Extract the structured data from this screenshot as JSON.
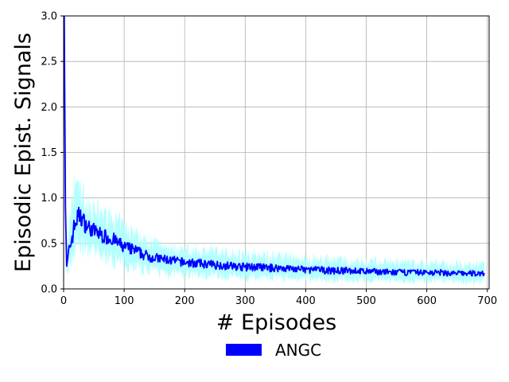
{
  "chart_data": {
    "type": "line",
    "title": "",
    "xlabel": "# Episodes",
    "ylabel": "Episodic Epist. Signals",
    "xlim": [
      0,
      703
    ],
    "ylim": [
      0,
      3.0
    ],
    "xticks": [
      0,
      100,
      200,
      300,
      400,
      500,
      600,
      700
    ],
    "yticks": [
      0.0,
      0.5,
      1.0,
      1.5,
      2.0,
      2.5,
      3.0
    ],
    "xtick_labels": [
      "0",
      "100",
      "200",
      "300",
      "400",
      "500",
      "600",
      "700"
    ],
    "ytick_labels": [
      "0.0",
      "0.5",
      "1.0",
      "1.5",
      "2.0",
      "2.5",
      "3.0"
    ],
    "grid": true,
    "legend": {
      "placement": "below-plot",
      "entries": [
        "ANGC"
      ]
    },
    "colors": {
      "mean_line": "#0000ff",
      "band": "#aaffff",
      "grid": "#b0b0b0"
    },
    "series": [
      {
        "name": "ANGC",
        "x": [
          1,
          3,
          5,
          7,
          10,
          15,
          20,
          25,
          30,
          35,
          40,
          50,
          60,
          70,
          80,
          90,
          100,
          110,
          120,
          130,
          140,
          150,
          160,
          170,
          180,
          190,
          200,
          220,
          240,
          260,
          280,
          300,
          320,
          340,
          360,
          380,
          400,
          420,
          440,
          460,
          480,
          500,
          520,
          540,
          560,
          580,
          600,
          620,
          640,
          660,
          680,
          695
        ],
        "values": [
          3.0,
          0.9,
          0.25,
          0.35,
          0.45,
          0.6,
          0.75,
          0.8,
          0.78,
          0.72,
          0.68,
          0.64,
          0.6,
          0.57,
          0.55,
          0.5,
          0.46,
          0.44,
          0.42,
          0.38,
          0.36,
          0.34,
          0.33,
          0.32,
          0.31,
          0.3,
          0.29,
          0.28,
          0.27,
          0.26,
          0.25,
          0.24,
          0.24,
          0.23,
          0.23,
          0.22,
          0.21,
          0.21,
          0.2,
          0.2,
          0.2,
          0.19,
          0.19,
          0.18,
          0.18,
          0.18,
          0.18,
          0.18,
          0.17,
          0.17,
          0.17,
          0.17
        ],
        "band_lower": [
          2.5,
          0.6,
          0.15,
          0.2,
          0.28,
          0.38,
          0.48,
          0.5,
          0.48,
          0.44,
          0.42,
          0.4,
          0.37,
          0.35,
          0.33,
          0.3,
          0.28,
          0.26,
          0.25,
          0.22,
          0.21,
          0.2,
          0.19,
          0.18,
          0.17,
          0.17,
          0.16,
          0.15,
          0.15,
          0.14,
          0.14,
          0.13,
          0.13,
          0.12,
          0.12,
          0.12,
          0.11,
          0.11,
          0.1,
          0.1,
          0.1,
          0.1,
          0.1,
          0.09,
          0.09,
          0.09,
          0.09,
          0.09,
          0.09,
          0.09,
          0.09,
          0.09
        ],
        "band_upper": [
          3.0,
          1.3,
          0.4,
          0.55,
          0.7,
          0.95,
          1.2,
          1.1,
          1.05,
          0.98,
          0.92,
          0.88,
          0.84,
          0.8,
          0.77,
          0.72,
          0.68,
          0.64,
          0.6,
          0.56,
          0.53,
          0.5,
          0.49,
          0.47,
          0.46,
          0.44,
          0.43,
          0.42,
          0.41,
          0.4,
          0.39,
          0.38,
          0.37,
          0.36,
          0.35,
          0.34,
          0.33,
          0.32,
          0.32,
          0.31,
          0.3,
          0.3,
          0.29,
          0.29,
          0.28,
          0.28,
          0.28,
          0.28,
          0.27,
          0.27,
          0.27,
          0.27
        ]
      }
    ]
  }
}
